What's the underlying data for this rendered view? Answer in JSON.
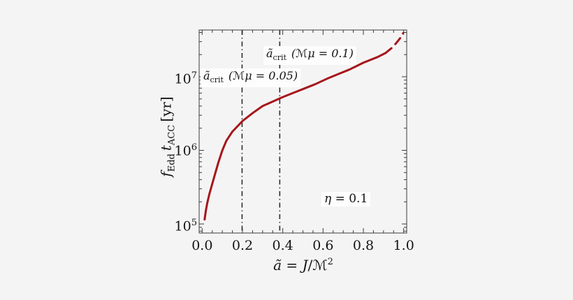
{
  "figure": {
    "background": "#f5f4f5",
    "frame_color": "#3c3c3c",
    "text_color": "#141414",
    "curve_color": "#a5161a",
    "vline_color": "#2d2d2d",
    "annotation_bg": "#fdfdfd"
  },
  "axes": {
    "y_title": {
      "f": "f",
      "f_sub": "Edd",
      "t": "t",
      "t_sub": "ACC",
      "unit": "[yr]"
    },
    "x_title": {
      "var": "ã",
      "eq": " = ",
      "num": "J",
      "slash": "/",
      "m": "ℳ",
      "exp": "2"
    },
    "y_tick_labels": [
      {
        "base": "10",
        "exp": "5"
      },
      {
        "base": "10",
        "exp": "6"
      },
      {
        "base": "10",
        "exp": "7"
      }
    ]
  },
  "annotations": {
    "acrit_005": {
      "var": "ã",
      "sub": "crit",
      "rest": "(ℳμ = 0.05)"
    },
    "acrit_01": {
      "var": "ã",
      "sub": "crit",
      "rest": "(ℳμ = 0.1)"
    },
    "eta": {
      "var": "η",
      "rest": " = 0.1"
    }
  },
  "chart_data": {
    "type": "line",
    "title": "",
    "xlabel": "ã = J/ℳ²",
    "ylabel": "f_Edd t_ACC [yr]",
    "x_range": [
      -0.015,
      1.015
    ],
    "y_scale": "log",
    "y_log_range": [
      4.877,
      7.635
    ],
    "grid": false,
    "frame": true,
    "legend": "none",
    "xticks": [
      {
        "v": 0.0,
        "label": "0.0"
      },
      {
        "v": 0.2,
        "label": "0.2"
      },
      {
        "v": 0.4,
        "label": "0.4"
      },
      {
        "v": 0.6,
        "label": "0.6"
      },
      {
        "v": 0.8,
        "label": "0.8"
      },
      {
        "v": 1.0,
        "label": "1.0"
      }
    ],
    "xminor": [
      0.05,
      0.1,
      0.15,
      0.25,
      0.3,
      0.35,
      0.45,
      0.5,
      0.55,
      0.65,
      0.7,
      0.75,
      0.85,
      0.9,
      0.95
    ],
    "yticks": [
      100000.0,
      1000000.0,
      10000000.0
    ],
    "yminor": [
      80000.0,
      90000.0,
      200000.0,
      300000.0,
      400000.0,
      500000.0,
      600000.0,
      700000.0,
      800000.0,
      900000.0,
      2000000.0,
      3000000.0,
      4000000.0,
      5000000.0,
      6000000.0,
      7000000.0,
      8000000.0,
      9000000.0,
      20000000.0,
      30000000.0,
      40000000.0
    ],
    "vlines": [
      {
        "x": 0.198,
        "meaning": "ã_crit for ℳμ = 0.05"
      },
      {
        "x": 0.385,
        "meaning": "ã_crit for ℳμ = 0.1"
      }
    ],
    "series": [
      {
        "name": "f_Edd t_ACC (η = 0.1)",
        "style": "solid",
        "color": "#a5161a",
        "points": [
          [
            0.012,
            115000
          ],
          [
            0.018,
            150000
          ],
          [
            0.025,
            190000
          ],
          [
            0.035,
            250000
          ],
          [
            0.05,
            350000
          ],
          [
            0.065,
            490000
          ],
          [
            0.08,
            680000
          ],
          [
            0.1,
            1000000
          ],
          [
            0.12,
            1350000
          ],
          [
            0.15,
            1800000
          ],
          [
            0.2,
            2500000
          ],
          [
            0.25,
            3200000
          ],
          [
            0.3,
            4000000
          ],
          [
            0.35,
            4600000
          ],
          [
            0.4,
            5300000
          ],
          [
            0.45,
            6000000
          ],
          [
            0.5,
            6800000
          ],
          [
            0.56,
            7900000
          ],
          [
            0.62,
            9400000
          ],
          [
            0.68,
            11000000
          ],
          [
            0.73,
            12500000
          ],
          [
            0.8,
            15500000
          ],
          [
            0.87,
            18500000
          ],
          [
            0.91,
            21000000
          ]
        ]
      },
      {
        "name": "f_Edd t_ACC extrapolation (dashed)",
        "style": "dashed",
        "color": "#a5161a",
        "points": [
          [
            0.91,
            21000000
          ],
          [
            0.94,
            24500000
          ],
          [
            0.96,
            28000000
          ],
          [
            0.975,
            31500000
          ],
          [
            0.99,
            35500000
          ],
          [
            0.997,
            39000000
          ]
        ]
      }
    ]
  }
}
